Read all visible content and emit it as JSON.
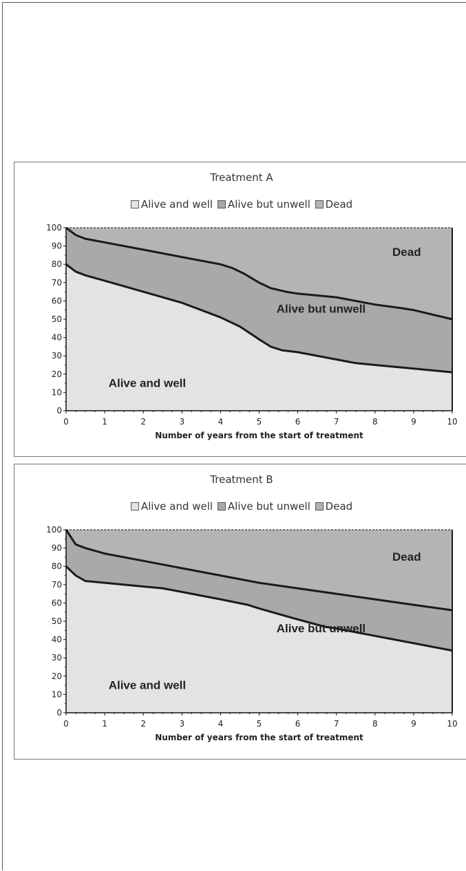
{
  "chart_data": [
    {
      "type": "area",
      "stacked": true,
      "title": "Treatment A",
      "xlabel": "Number of years from the start of treatment",
      "ylabel": "",
      "xlim": [
        0,
        10
      ],
      "ylim": [
        0,
        100
      ],
      "x_ticks": [
        "0",
        "1",
        "2",
        "3",
        "4",
        "5",
        "6",
        "7",
        "8",
        "9",
        "10"
      ],
      "y_ticks": [
        "0",
        "10",
        "20",
        "30",
        "40",
        "50",
        "60",
        "70",
        "80",
        "90",
        "100"
      ],
      "legend": [
        "Alive and well",
        "Alive but unwell",
        "Dead"
      ],
      "legend_position": "top",
      "region_labels": {
        "well": "Alive and well",
        "unwell": "Alive but unwell",
        "dead": "Dead"
      },
      "boundaries": {
        "alive_and_well_upper": {
          "x": [
            0,
            0.25,
            0.5,
            1,
            2,
            3,
            3.5,
            4,
            4.5,
            5,
            5.3,
            5.6,
            6,
            7,
            7.5,
            8,
            9,
            10
          ],
          "y": [
            80,
            76,
            74,
            71,
            65,
            59,
            55,
            51,
            46,
            39,
            35,
            33,
            32,
            28,
            26,
            25,
            23,
            21
          ]
        },
        "alive_total_upper": {
          "x": [
            0,
            0.25,
            0.5,
            1,
            2,
            3,
            4,
            4.3,
            4.6,
            5,
            5.3,
            5.7,
            6,
            7,
            8,
            8.7,
            9,
            10
          ],
          "y": [
            100,
            96,
            94,
            92,
            88,
            84,
            80,
            78,
            75,
            70,
            67,
            65,
            64,
            62,
            58,
            56,
            55,
            50
          ]
        }
      },
      "colors": {
        "well": "#e3e3e3",
        "unwell": "#a9a9a9",
        "dead": "#b4b4b4",
        "line": "#1a1a1a"
      }
    },
    {
      "type": "area",
      "stacked": true,
      "title": "Treatment B",
      "xlabel": "Number of years from the start of treatment",
      "ylabel": "",
      "xlim": [
        0,
        10
      ],
      "ylim": [
        0,
        100
      ],
      "x_ticks": [
        "0",
        "1",
        "2",
        "3",
        "4",
        "5",
        "6",
        "7",
        "8",
        "9",
        "10"
      ],
      "y_ticks": [
        "0",
        "10",
        "20",
        "30",
        "40",
        "50",
        "60",
        "70",
        "80",
        "90",
        "100"
      ],
      "legend": [
        "Alive and well",
        "Alive but unwell",
        "Dead"
      ],
      "legend_position": "top",
      "region_labels": {
        "well": "Alive and well",
        "unwell": "Alive but unwell",
        "dead": "Dead"
      },
      "boundaries": {
        "alive_and_well_upper": {
          "x": [
            0,
            0.25,
            0.5,
            1,
            2,
            2.5,
            3,
            4,
            4.7,
            5,
            5.5,
            6,
            6.7,
            7,
            8,
            9,
            10
          ],
          "y": [
            80,
            75,
            72,
            71,
            69,
            68,
            66,
            62,
            59,
            57,
            54,
            51,
            47,
            46,
            42,
            38,
            34
          ]
        },
        "alive_total_upper": {
          "x": [
            0,
            0.25,
            0.5,
            1,
            2,
            3,
            4,
            5,
            6,
            7,
            8,
            9,
            10
          ],
          "y": [
            100,
            92,
            90,
            87,
            83,
            79,
            75,
            71,
            68,
            65,
            62,
            59,
            56
          ]
        }
      },
      "colors": {
        "well": "#e3e3e3",
        "unwell": "#a9a9a9",
        "dead": "#b4b4b4",
        "line": "#1a1a1a"
      }
    }
  ]
}
